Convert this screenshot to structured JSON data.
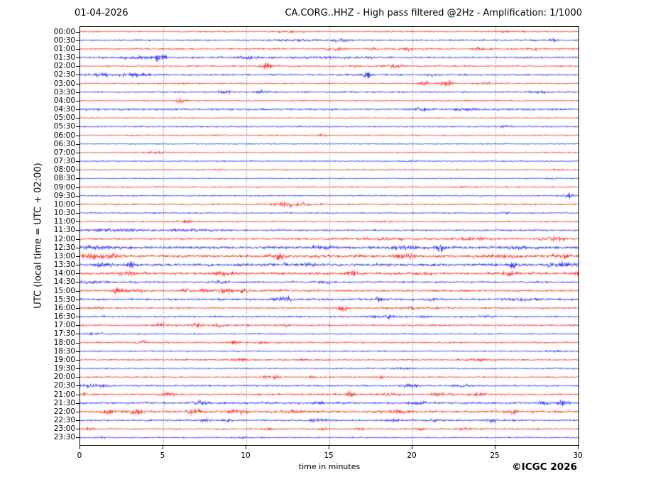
{
  "header": {
    "date": "01-04-2026",
    "title": "CA.CORG..HHZ - High pass filtered @2Hz - Amplification: 1/1000"
  },
  "footer": {
    "copyright": "©ICGC 2026"
  },
  "chart_data": {
    "type": "line",
    "subtype": "helicorder-seismogram",
    "title": "CA.CORG..HHZ - High pass filtered @2Hz - Amplification: 1/1000",
    "date": "01-04-2026",
    "xlabel": "time in minutes",
    "ylabel": "UTC (local time = UTC + 02:00)",
    "xlim": [
      0,
      30
    ],
    "x_ticks": [
      0,
      5,
      10,
      15,
      20,
      25,
      30
    ],
    "grid": "vertical dotted gridlines at 5-minute intervals",
    "legend": "none",
    "palette": {
      "red": "#ff0000",
      "blue": "#0000ff",
      "grid": "#555555"
    },
    "events_format": "[center_minute, width_minutes, amplitude_px]",
    "rows": [
      {
        "label": "00:00",
        "color": "red",
        "noise": 0.45,
        "events": [
          [
            12.6,
            0.8,
            0.5
          ],
          [
            25.8,
            1.0,
            0.5
          ]
        ]
      },
      {
        "label": "00:30",
        "color": "blue",
        "noise": 0.55,
        "events": [
          [
            15.6,
            0.6,
            0.9
          ],
          [
            13.0,
            1.5,
            0.5
          ],
          [
            28.5,
            0.3,
            0.8
          ]
        ]
      },
      {
        "label": "01:00",
        "color": "red",
        "noise": 0.55,
        "events": [
          [
            15.4,
            0.5,
            0.9
          ],
          [
            17.7,
            0.3,
            1.1
          ],
          [
            19.5,
            0.5,
            0.8
          ],
          [
            24.1,
            0.4,
            0.8
          ],
          [
            27.1,
            0.3,
            0.7
          ]
        ]
      },
      {
        "label": "01:30",
        "color": "blue",
        "noise": 0.6,
        "events": [
          [
            4.8,
            0.35,
            2.6
          ],
          [
            3.5,
            1.2,
            0.8
          ],
          [
            10.0,
            0.8,
            0.6
          ],
          [
            15.0,
            5.0,
            0.3
          ]
        ]
      },
      {
        "label": "02:00",
        "color": "red",
        "noise": 0.55,
        "events": [
          [
            11.2,
            0.4,
            2.0
          ],
          [
            16.6,
            0.3,
            1.0
          ],
          [
            18.9,
            0.6,
            0.9
          ]
        ]
      },
      {
        "label": "02:30",
        "color": "blue",
        "noise": 0.6,
        "events": [
          [
            3.4,
            0.9,
            0.9
          ],
          [
            1.5,
            1.0,
            0.6
          ],
          [
            17.3,
            0.25,
            2.4
          ],
          [
            21.0,
            0.4,
            0.6
          ]
        ]
      },
      {
        "label": "03:00",
        "color": "red",
        "noise": 0.5,
        "events": [
          [
            20.8,
            0.4,
            1.3
          ],
          [
            22.0,
            0.35,
            2.2
          ],
          [
            24.3,
            0.4,
            0.7
          ]
        ]
      },
      {
        "label": "03:30",
        "color": "blue",
        "noise": 0.55,
        "events": [
          [
            8.7,
            0.4,
            1.0
          ],
          [
            10.9,
            0.5,
            0.7
          ],
          [
            27.7,
            0.6,
            0.6
          ]
        ]
      },
      {
        "label": "04:00",
        "color": "red",
        "noise": 0.45,
        "events": [
          [
            6.0,
            0.35,
            1.8
          ]
        ]
      },
      {
        "label": "04:30",
        "color": "blue",
        "noise": 0.7,
        "events": [
          [
            20.6,
            0.6,
            0.7
          ],
          [
            23.2,
            0.5,
            0.7
          ]
        ]
      },
      {
        "label": "05:00",
        "color": "red",
        "noise": 0.4,
        "events": []
      },
      {
        "label": "05:30",
        "color": "blue",
        "noise": 0.5,
        "events": [
          [
            25.5,
            0.4,
            0.6
          ]
        ]
      },
      {
        "label": "06:00",
        "color": "red",
        "noise": 0.45,
        "events": [
          [
            14.6,
            0.25,
            0.9
          ]
        ]
      },
      {
        "label": "06:30",
        "color": "blue",
        "noise": 0.4,
        "events": []
      },
      {
        "label": "07:00",
        "color": "red",
        "noise": 0.45,
        "events": [
          [
            4.6,
            0.8,
            0.6
          ]
        ]
      },
      {
        "label": "07:30",
        "color": "blue",
        "noise": 0.4,
        "events": [
          [
            19.9,
            0.4,
            0.5
          ]
        ]
      },
      {
        "label": "08:00",
        "color": "red",
        "noise": 0.45,
        "events": [
          [
            8.3,
            0.3,
            0.5
          ],
          [
            28.8,
            0.3,
            0.6
          ]
        ]
      },
      {
        "label": "08:30",
        "color": "blue",
        "noise": 0.4,
        "events": [
          [
            28.6,
            0.3,
            0.5
          ]
        ]
      },
      {
        "label": "09:00",
        "color": "red",
        "noise": 0.45,
        "events": [
          [
            23.0,
            0.4,
            0.5
          ]
        ]
      },
      {
        "label": "09:30",
        "color": "blue",
        "noise": 0.45,
        "events": [
          [
            29.4,
            0.25,
            1.5
          ]
        ]
      },
      {
        "label": "10:00",
        "color": "red",
        "noise": 0.55,
        "events": [
          [
            12.7,
            1.1,
            1.1
          ]
        ]
      },
      {
        "label": "10:30",
        "color": "blue",
        "noise": 0.45,
        "events": [
          [
            25.6,
            0.3,
            0.6
          ]
        ]
      },
      {
        "label": "11:00",
        "color": "red",
        "noise": 0.5,
        "events": [
          [
            6.5,
            0.4,
            0.6
          ],
          [
            18.3,
            0.4,
            0.5
          ]
        ]
      },
      {
        "label": "11:30",
        "color": "blue",
        "noise": 0.6,
        "events": [
          [
            2.2,
            1.4,
            0.8
          ],
          [
            6.5,
            1.5,
            0.5
          ]
        ]
      },
      {
        "label": "12:00",
        "color": "red",
        "noise": 0.7,
        "events": [
          [
            18.5,
            1.5,
            0.5
          ],
          [
            23.8,
            0.9,
            0.9
          ],
          [
            28.5,
            0.7,
            1.2
          ]
        ]
      },
      {
        "label": "12:30",
        "color": "blue",
        "noise": 0.9,
        "events": [
          [
            1.2,
            1.2,
            0.8
          ],
          [
            14.5,
            1.0,
            0.7
          ],
          [
            19.6,
            0.8,
            1.0
          ],
          [
            21.65,
            0.2,
            3.4
          ],
          [
            26.0,
            1.5,
            0.5
          ]
        ]
      },
      {
        "label": "13:00",
        "color": "red",
        "noise": 1.0,
        "events": [
          [
            0.6,
            0.7,
            1.1
          ],
          [
            1.9,
            0.4,
            1.2
          ],
          [
            11.9,
            0.35,
            1.9
          ],
          [
            19.6,
            0.5,
            1.1
          ],
          [
            25.5,
            0.8,
            0.7
          ],
          [
            29.0,
            0.6,
            0.9
          ]
        ]
      },
      {
        "label": "13:30",
        "color": "blue",
        "noise": 0.9,
        "events": [
          [
            1.3,
            0.5,
            1.0
          ],
          [
            3.0,
            0.3,
            2.1
          ],
          [
            13.0,
            1.5,
            0.5
          ],
          [
            26.1,
            0.3,
            2.2
          ],
          [
            29.0,
            0.8,
            1.1
          ]
        ]
      },
      {
        "label": "14:00",
        "color": "red",
        "noise": 0.9,
        "events": [
          [
            2.8,
            0.5,
            1.1
          ],
          [
            8.7,
            0.5,
            1.0
          ],
          [
            16.4,
            0.4,
            1.5
          ],
          [
            20.6,
            0.5,
            0.9
          ],
          [
            25.8,
            0.4,
            0.9
          ],
          [
            29.8,
            0.3,
            1.2
          ]
        ]
      },
      {
        "label": "14:30",
        "color": "blue",
        "noise": 0.65,
        "events": [
          [
            0.7,
            0.8,
            0.8
          ],
          [
            8.5,
            0.4,
            0.6
          ],
          [
            14.7,
            0.4,
            0.5
          ]
        ]
      },
      {
        "label": "15:00",
        "color": "red",
        "noise": 0.7,
        "events": [
          [
            2.2,
            0.25,
            2.4
          ],
          [
            3.2,
            0.6,
            1.1
          ],
          [
            6.4,
            0.3,
            1.3
          ],
          [
            7.4,
            0.25,
            1.4
          ],
          [
            8.6,
            0.3,
            1.3
          ],
          [
            9.1,
            0.25,
            1.5
          ],
          [
            9.9,
            0.3,
            1.3
          ],
          [
            11.9,
            0.5,
            0.8
          ]
        ]
      },
      {
        "label": "15:30",
        "color": "blue",
        "noise": 0.7,
        "events": [
          [
            11.9,
            0.3,
            1.1
          ],
          [
            12.5,
            0.25,
            1.7
          ],
          [
            18.0,
            0.4,
            1.0
          ],
          [
            21.2,
            0.35,
            0.9
          ],
          [
            26.5,
            1.2,
            0.6
          ]
        ]
      },
      {
        "label": "16:00",
        "color": "red",
        "noise": 0.6,
        "events": [
          [
            1.0,
            0.6,
            0.8
          ],
          [
            15.8,
            0.3,
            2.3
          ],
          [
            20.0,
            2.0,
            0.4
          ]
        ]
      },
      {
        "label": "16:30",
        "color": "blue",
        "noise": 0.6,
        "events": [
          [
            18.2,
            0.9,
            0.9
          ],
          [
            20.7,
            0.4,
            0.6
          ],
          [
            24.5,
            0.5,
            0.5
          ]
        ]
      },
      {
        "label": "17:00",
        "color": "red",
        "noise": 0.6,
        "events": [
          [
            4.9,
            0.5,
            1.1
          ],
          [
            7.0,
            0.4,
            1.2
          ],
          [
            8.4,
            0.45,
            1.6
          ],
          [
            12.4,
            0.3,
            0.7
          ]
        ]
      },
      {
        "label": "17:30",
        "color": "blue",
        "noise": 0.45,
        "events": [
          [
            0.8,
            0.8,
            0.6
          ]
        ]
      },
      {
        "label": "18:00",
        "color": "red",
        "noise": 0.55,
        "events": [
          [
            3.8,
            0.3,
            0.9
          ],
          [
            9.3,
            0.3,
            0.8
          ],
          [
            10.9,
            0.3,
            0.8
          ]
        ]
      },
      {
        "label": "18:30",
        "color": "blue",
        "noise": 0.45,
        "events": [
          [
            28.5,
            0.6,
            0.5
          ]
        ]
      },
      {
        "label": "19:00",
        "color": "red",
        "noise": 0.55,
        "events": [
          [
            9.6,
            0.5,
            0.8
          ],
          [
            13.4,
            0.3,
            0.6
          ],
          [
            23.8,
            0.8,
            0.8
          ]
        ]
      },
      {
        "label": "19:30",
        "color": "blue",
        "noise": 0.45,
        "events": [
          [
            19.3,
            0.7,
            0.6
          ]
        ]
      },
      {
        "label": "20:00",
        "color": "red",
        "noise": 0.5,
        "events": [
          [
            11.3,
            0.3,
            0.8
          ],
          [
            11.8,
            0.2,
            1.1
          ],
          [
            14.0,
            0.3,
            0.7
          ],
          [
            18.2,
            0.3,
            0.7
          ]
        ]
      },
      {
        "label": "20:30",
        "color": "blue",
        "noise": 0.6,
        "events": [
          [
            0.8,
            0.9,
            0.8
          ],
          [
            19.9,
            0.6,
            1.0
          ],
          [
            23.0,
            0.5,
            0.6
          ]
        ]
      },
      {
        "label": "21:00",
        "color": "red",
        "noise": 0.6,
        "events": [
          [
            0.25,
            0.15,
            1.8
          ],
          [
            5.3,
            0.4,
            1.2
          ],
          [
            16.3,
            0.25,
            1.9
          ],
          [
            18.6,
            0.6,
            0.9
          ],
          [
            21.6,
            0.6,
            0.9
          ],
          [
            24.0,
            0.5,
            0.9
          ]
        ]
      },
      {
        "label": "21:30",
        "color": "blue",
        "noise": 0.7,
        "events": [
          [
            7.3,
            0.4,
            0.9
          ],
          [
            14.2,
            0.4,
            0.9
          ],
          [
            20.4,
            0.5,
            0.7
          ],
          [
            27.9,
            0.3,
            1.5
          ],
          [
            29.1,
            0.3,
            2.0
          ]
        ]
      },
      {
        "label": "22:00",
        "color": "red",
        "noise": 0.8,
        "events": [
          [
            1.6,
            0.4,
            1.1
          ],
          [
            3.4,
            0.5,
            1.3
          ],
          [
            6.9,
            0.5,
            1.4
          ],
          [
            9.5,
            0.6,
            1.1
          ],
          [
            12.8,
            0.6,
            0.9
          ],
          [
            19.0,
            0.8,
            1.0
          ],
          [
            25.9,
            0.4,
            1.0
          ]
        ]
      },
      {
        "label": "22:30",
        "color": "blue",
        "noise": 0.6,
        "events": [
          [
            7.5,
            0.3,
            1.1
          ],
          [
            8.8,
            0.3,
            0.9
          ],
          [
            14.2,
            0.4,
            1.0
          ],
          [
            18.9,
            0.4,
            0.7
          ],
          [
            21.3,
            0.3,
            0.7
          ],
          [
            24.8,
            0.3,
            1.5
          ]
        ]
      },
      {
        "label": "23:00",
        "color": "red",
        "noise": 0.55,
        "events": [
          [
            0.6,
            0.25,
            0.8
          ],
          [
            11.3,
            0.3,
            0.7
          ],
          [
            14.6,
            0.25,
            0.8
          ],
          [
            16.8,
            0.25,
            0.8
          ],
          [
            20.5,
            0.25,
            0.7
          ],
          [
            23.2,
            0.3,
            0.8
          ]
        ]
      },
      {
        "label": "23:30",
        "color": "blue",
        "noise": 0.45,
        "events": [
          [
            1.3,
            0.4,
            0.5
          ],
          [
            9.7,
            0.5,
            0.5
          ]
        ]
      }
    ]
  }
}
